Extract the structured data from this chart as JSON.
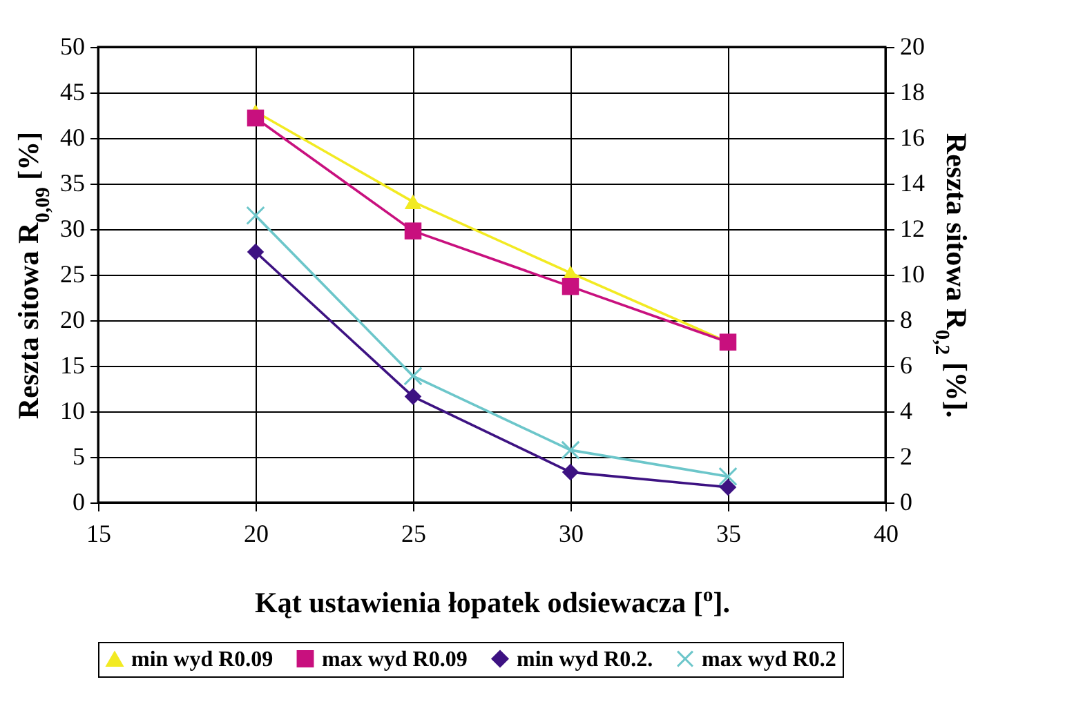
{
  "chart_data": {
    "type": "line",
    "xlabel": "Kąt ustawienia łopatek odsiewacza [$^{o}$].",
    "ylabel": "Reszta sitowa R$_{0,09}$ [%]",
    "y2label": "Reszta sitowa R$_{0,2}$ [%].",
    "x": [
      20,
      25,
      30,
      35
    ],
    "series": [
      {
        "name": "min wyd R0.09",
        "color": "#f2ea22",
        "marker": "triangle",
        "values": [
          42.9,
          33.0,
          25.2,
          17.6
        ]
      },
      {
        "name": "max wyd R0.09",
        "color": "#c8107e",
        "marker": "square",
        "values": [
          42.2,
          29.8,
          23.7,
          17.6
        ]
      },
      {
        "name": "min wyd R0.2.",
        "color": "#3d1282",
        "marker": "diamond",
        "axis": "y2",
        "values": [
          11.0,
          4.65,
          1.33,
          0.67
        ]
      },
      {
        "name": "max wyd R0.2",
        "color": "#6cc6ca",
        "marker": "cross",
        "axis": "y2",
        "values": [
          12.6,
          5.55,
          2.3,
          1.14
        ]
      }
    ],
    "xlim": [
      15,
      40
    ],
    "xticks": [
      15,
      20,
      25,
      30,
      35,
      40
    ],
    "ylim": [
      0,
      50
    ],
    "yticks": [
      0,
      5,
      10,
      15,
      20,
      25,
      30,
      35,
      40,
      45,
      50
    ],
    "y2lim": [
      0,
      20
    ],
    "y2ticks": [
      0,
      2,
      4,
      6,
      8,
      10,
      12,
      14,
      16,
      18,
      20
    ],
    "grid": true,
    "legend": "bottom"
  }
}
